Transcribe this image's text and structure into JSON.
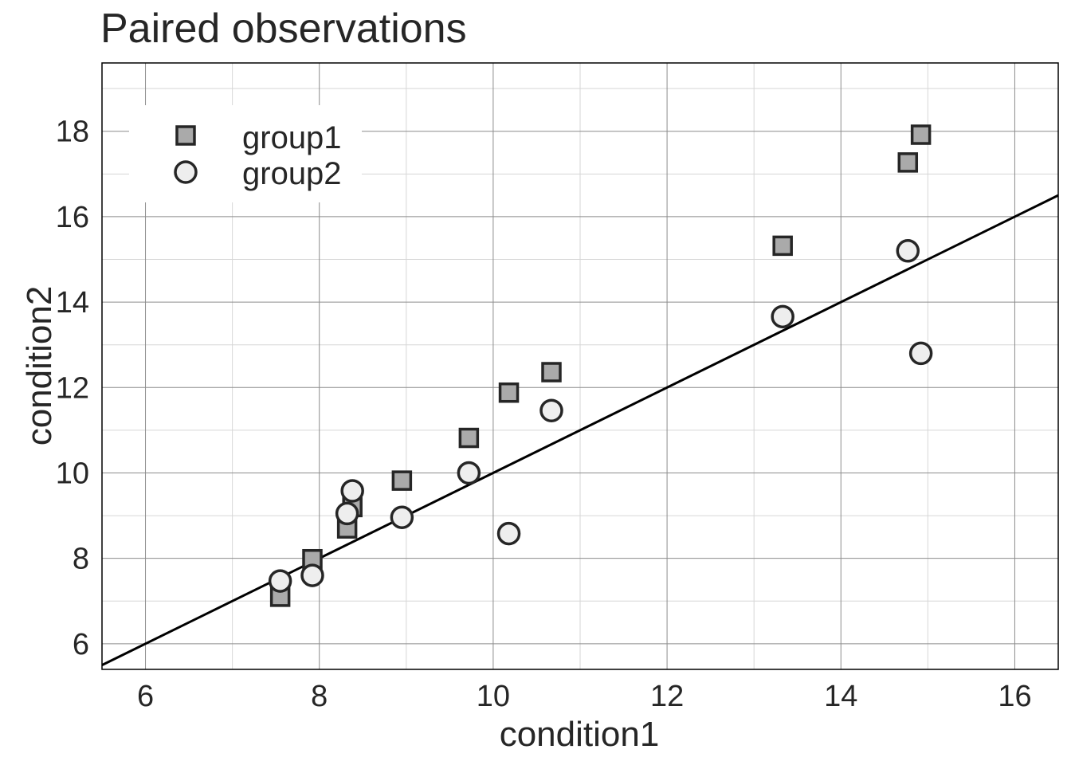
{
  "chart_data": {
    "type": "scatter",
    "title": "Paired observations",
    "xlabel": "condition1",
    "ylabel": "condition2",
    "xlim": [
      5.5,
      16.5
    ],
    "ylim": [
      5.4,
      19.6
    ],
    "xticks": [
      6,
      8,
      10,
      12,
      14,
      16
    ],
    "yticks": [
      6,
      8,
      10,
      12,
      14,
      16,
      18
    ],
    "grid": true,
    "legend_position": "top-left",
    "reference_line": {
      "type": "identity",
      "color": "#000000"
    },
    "series": [
      {
        "name": "group1",
        "marker": "square",
        "fill": "#aaaaaa",
        "stroke": "#262626",
        "points": [
          [
            7.55,
            7.1
          ],
          [
            7.92,
            7.98
          ],
          [
            8.32,
            8.7
          ],
          [
            8.38,
            9.2
          ],
          [
            8.95,
            9.82
          ],
          [
            9.72,
            10.82
          ],
          [
            10.18,
            11.88
          ],
          [
            10.67,
            12.36
          ],
          [
            13.33,
            15.32
          ],
          [
            14.77,
            17.27
          ],
          [
            14.92,
            17.92
          ]
        ]
      },
      {
        "name": "group2",
        "marker": "circle",
        "fill": "#eeeeee",
        "stroke": "#262626",
        "points": [
          [
            7.55,
            7.47
          ],
          [
            7.92,
            7.6
          ],
          [
            8.32,
            9.05
          ],
          [
            8.38,
            9.58
          ],
          [
            8.95,
            8.96
          ],
          [
            9.72,
            10.0
          ],
          [
            10.18,
            8.58
          ],
          [
            10.67,
            11.46
          ],
          [
            13.33,
            13.66
          ],
          [
            14.77,
            15.2
          ],
          [
            14.92,
            12.8
          ]
        ]
      }
    ]
  }
}
